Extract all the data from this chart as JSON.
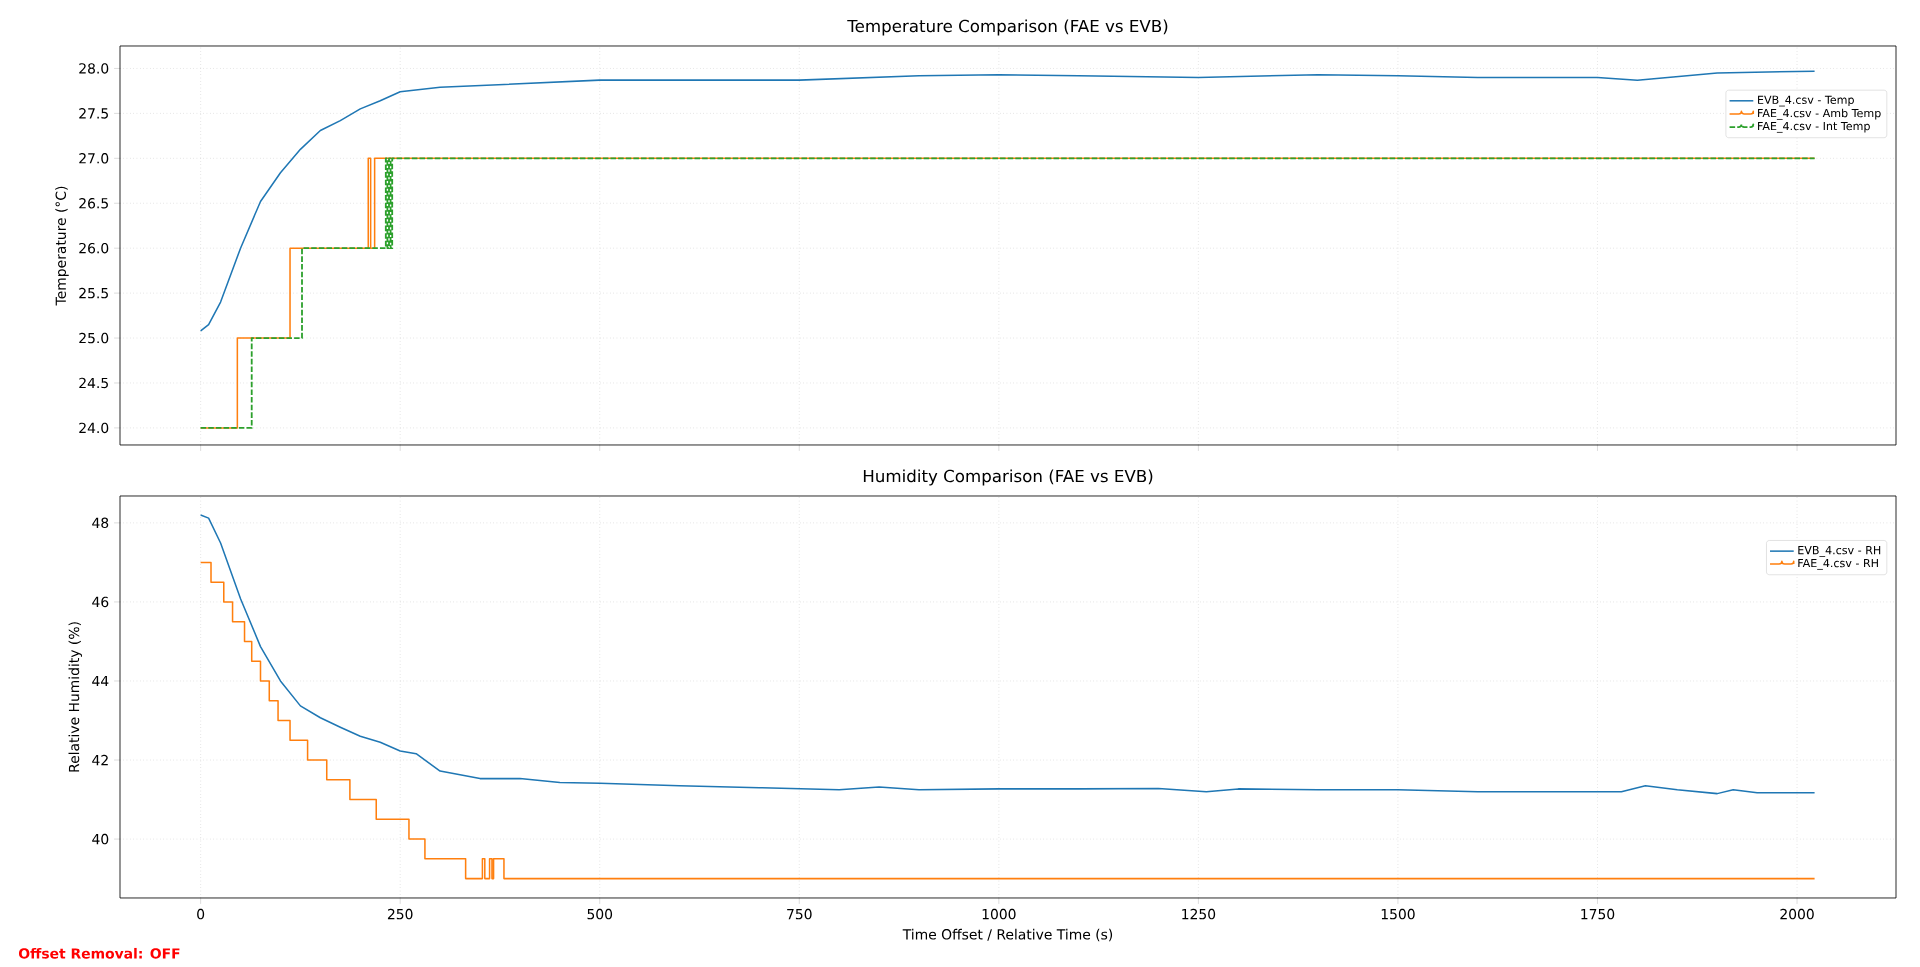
{
  "chart_data": [
    {
      "type": "line",
      "title": "Temperature Comparison (FAE vs EVB)",
      "ylabel": "Temperature (°C)",
      "xlim": [
        -101,
        2124
      ],
      "ylim": [
        23.81,
        28.25
      ],
      "xticks": [
        0,
        250,
        500,
        750,
        1000,
        1250,
        1500,
        1750,
        2000
      ],
      "yticks": [
        {
          "value": 24,
          "label": "24.0"
        },
        24.5,
        {
          "value": 25,
          "label": "25.0"
        },
        25.5,
        {
          "value": 26,
          "label": "26.0"
        },
        26.5,
        {
          "value": 27,
          "label": "27.0"
        },
        27.5,
        {
          "value": 28,
          "label": "28.0"
        }
      ],
      "tick_labels": "y",
      "grid": true,
      "legend": "top right",
      "series": [
        {
          "name": "EVB_4.csv - Temp",
          "color": "#1f77b4",
          "type": "line",
          "line_style": "solid",
          "x": [
            0,
            10,
            25,
            50,
            75,
            100,
            125,
            150,
            175,
            200,
            225,
            250,
            300,
            400,
            500,
            600,
            750,
            900,
            1000,
            1100,
            1250,
            1400,
            1500,
            1600,
            1750,
            1800,
            1900,
            2022
          ],
          "values": [
            25.08,
            25.15,
            25.4,
            26.0,
            26.52,
            26.84,
            27.1,
            27.31,
            27.42,
            27.55,
            27.64,
            27.74,
            27.79,
            27.83,
            27.87,
            27.87,
            27.87,
            27.92,
            27.93,
            27.92,
            27.9,
            27.93,
            27.92,
            27.9,
            27.9,
            27.87,
            27.95,
            27.97
          ]
        },
        {
          "name": "FAE_4.csv - Amb Temp",
          "color": "#ff7f0e",
          "type": "step",
          "line_style": "solid",
          "x": [
            0,
            46,
            112,
            210,
            213,
            218,
            2022
          ],
          "values": [
            24,
            25,
            26,
            27,
            26,
            27,
            27
          ]
        },
        {
          "name": "FAE_4.csv - Int Temp",
          "color": "#2ca02c",
          "type": "step",
          "line_style": "dashed",
          "x": [
            0,
            64,
            127,
            232,
            234,
            236,
            238,
            240,
            2022
          ],
          "values": [
            24,
            25,
            26,
            27,
            26,
            27,
            26,
            27,
            27
          ]
        }
      ]
    },
    {
      "type": "line",
      "title": "Humidity Comparison (FAE vs EVB)",
      "xlabel": "Time Offset / Relative Time (s)",
      "ylabel": "Relative Humidity (%)",
      "xlim": [
        -101,
        2124
      ],
      "ylim": [
        38.51,
        48.68
      ],
      "xticks": [
        0,
        250,
        500,
        750,
        1000,
        1250,
        1500,
        1750,
        2000
      ],
      "yticks": [
        40,
        42,
        44,
        46,
        48
      ],
      "grid": true,
      "legend": "top right",
      "annotations": [
        "Offset Removal: OFF"
      ],
      "series": [
        {
          "name": "EVB_4.csv - RH",
          "color": "#1f77b4",
          "type": "line",
          "line_style": "solid",
          "x": [
            0,
            10,
            25,
            50,
            75,
            100,
            125,
            150,
            175,
            200,
            225,
            250,
            270,
            300,
            350,
            400,
            450,
            500,
            600,
            700,
            800,
            850,
            900,
            1000,
            1100,
            1200,
            1260,
            1300,
            1400,
            1500,
            1600,
            1700,
            1780,
            1810,
            1850,
            1900,
            1920,
            1950,
            2022
          ],
          "values": [
            48.2,
            48.12,
            47.49,
            46.08,
            44.87,
            44.0,
            43.37,
            43.07,
            42.83,
            42.6,
            42.45,
            42.23,
            42.16,
            41.72,
            41.53,
            41.53,
            41.43,
            41.41,
            41.35,
            41.3,
            41.25,
            41.32,
            41.25,
            41.27,
            41.27,
            41.28,
            41.2,
            41.27,
            41.25,
            41.25,
            41.2,
            41.2,
            41.2,
            41.35,
            41.25,
            41.15,
            41.25,
            41.17,
            41.17
          ]
        },
        {
          "name": "FAE_4.csv - RH",
          "color": "#ff7f0e",
          "type": "step",
          "line_style": "solid",
          "x": [
            0,
            13,
            29,
            40,
            55,
            64,
            75,
            86,
            97,
            112,
            134,
            158,
            187,
            220,
            261,
            281,
            332,
            353,
            356,
            362,
            365,
            367,
            380,
            2022
          ],
          "values": [
            47.0,
            46.5,
            46.0,
            45.5,
            45.0,
            44.5,
            44.0,
            43.5,
            43.0,
            42.5,
            42.0,
            41.5,
            41.0,
            40.5,
            40.0,
            39.5,
            39.0,
            39.5,
            39.0,
            39.5,
            39.0,
            39.5,
            39.0,
            39.0
          ]
        }
      ]
    }
  ]
}
